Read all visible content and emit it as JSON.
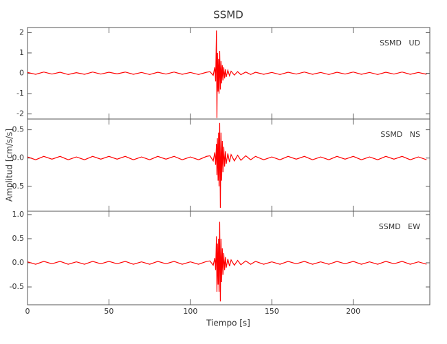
{
  "title": "SSMD",
  "xlabel": "Tiempo [s]",
  "ylabel": "Amplitud [cm/s/s]",
  "chart_data": [
    {
      "type": "line",
      "label": "SSMD   UD",
      "x": [
        0,
        5,
        10,
        15,
        20,
        25,
        30,
        35,
        40,
        45,
        50,
        55,
        60,
        65,
        70,
        75,
        80,
        85,
        90,
        95,
        100,
        105,
        110,
        112,
        114,
        115,
        115.5,
        116,
        116.3,
        116.6,
        117,
        117.3,
        117.6,
        118,
        118.4,
        118.8,
        119.2,
        119.6,
        120,
        120.5,
        121,
        121.5,
        122,
        123,
        124,
        125,
        127,
        129,
        131,
        134,
        137,
        140,
        145,
        150,
        155,
        160,
        165,
        170,
        175,
        180,
        185,
        190,
        195,
        200,
        205,
        210,
        215,
        220,
        225,
        230,
        235,
        240,
        245
      ],
      "series": [
        {
          "color": "#ff0000",
          "values": [
            0.04,
            -0.05,
            0.06,
            -0.04,
            0.05,
            -0.06,
            0.03,
            -0.05,
            0.06,
            -0.04,
            0.05,
            -0.03,
            0.06,
            -0.05,
            0.04,
            -0.06,
            0.05,
            -0.04,
            0.06,
            -0.05,
            0.04,
            -0.06,
            0.05,
            0.08,
            -0.1,
            0.3,
            -0.4,
            2.1,
            -2.2,
            1.0,
            -0.9,
            0.7,
            -1.0,
            1.1,
            -0.8,
            0.6,
            -0.5,
            0.4,
            -0.35,
            0.3,
            -0.25,
            0.2,
            -0.18,
            0.15,
            -0.12,
            0.1,
            -0.09,
            0.08,
            -0.07,
            0.06,
            -0.06,
            0.05,
            -0.05,
            0.04,
            -0.06,
            0.05,
            -0.04,
            0.06,
            -0.05,
            0.04,
            -0.06,
            0.05,
            -0.04,
            0.06,
            -0.05,
            0.04,
            -0.06,
            0.05,
            -0.04,
            0.06,
            -0.05,
            0.04,
            -0.05
          ]
        }
      ],
      "xlim": [
        0,
        247
      ],
      "xticks": [
        0,
        50,
        100,
        150,
        200
      ],
      "ylim": [
        -2.25,
        2.25
      ],
      "yticks": [
        -2,
        -1,
        0,
        1,
        2
      ]
    },
    {
      "type": "line",
      "label": "SSMD   NS",
      "x": [
        0,
        5,
        10,
        15,
        20,
        25,
        30,
        35,
        40,
        45,
        50,
        55,
        60,
        65,
        70,
        75,
        80,
        85,
        90,
        95,
        100,
        105,
        110,
        112,
        114,
        115,
        115.5,
        116,
        116.3,
        116.6,
        117,
        117.3,
        117.6,
        118,
        118.4,
        118.8,
        119.2,
        119.6,
        120,
        120.5,
        121,
        121.5,
        122,
        123,
        124,
        125,
        127,
        129,
        131,
        134,
        137,
        140,
        145,
        150,
        155,
        160,
        165,
        170,
        175,
        180,
        185,
        190,
        195,
        200,
        205,
        210,
        215,
        220,
        225,
        230,
        235,
        240,
        245
      ],
      "series": [
        {
          "color": "#ff0000",
          "values": [
            0.02,
            -0.03,
            0.03,
            -0.02,
            0.03,
            -0.03,
            0.02,
            -0.03,
            0.03,
            -0.02,
            0.03,
            -0.02,
            0.03,
            -0.03,
            0.02,
            -0.03,
            0.03,
            -0.02,
            0.03,
            -0.03,
            0.02,
            -0.03,
            0.03,
            0.04,
            -0.05,
            0.1,
            -0.12,
            0.25,
            -0.3,
            0.35,
            -0.4,
            0.45,
            -0.5,
            0.62,
            -0.88,
            0.45,
            -0.4,
            0.3,
            -0.25,
            0.2,
            -0.15,
            0.12,
            -0.1,
            0.08,
            -0.07,
            0.06,
            -0.05,
            0.05,
            -0.04,
            0.04,
            -0.03,
            0.03,
            -0.03,
            0.02,
            -0.03,
            0.03,
            -0.02,
            0.03,
            -0.03,
            0.02,
            -0.03,
            0.03,
            -0.02,
            0.03,
            -0.03,
            0.02,
            -0.03,
            0.03,
            -0.02,
            0.03,
            -0.03,
            0.02,
            -0.03
          ]
        }
      ],
      "xlim": [
        0,
        247
      ],
      "xticks": [
        0,
        50,
        100,
        150,
        200
      ],
      "ylim": [
        -0.94,
        0.69
      ],
      "yticks": [
        -0.5,
        {
          "value": 0,
          "label": "0.0"
        },
        0.5
      ]
    },
    {
      "type": "line",
      "label": "SSMD   EW",
      "x": [
        0,
        5,
        10,
        15,
        20,
        25,
        30,
        35,
        40,
        45,
        50,
        55,
        60,
        65,
        70,
        75,
        80,
        85,
        90,
        95,
        100,
        105,
        110,
        112,
        114,
        115,
        115.5,
        116,
        116.3,
        116.6,
        117,
        117.3,
        117.6,
        118,
        118.4,
        118.8,
        119.2,
        119.6,
        120,
        120.5,
        121,
        121.5,
        122,
        123,
        124,
        125,
        127,
        129,
        131,
        134,
        137,
        140,
        145,
        150,
        155,
        160,
        165,
        170,
        175,
        180,
        185,
        190,
        195,
        200,
        205,
        210,
        215,
        220,
        225,
        230,
        235,
        240,
        245
      ],
      "series": [
        {
          "color": "#ff0000",
          "values": [
            0.02,
            -0.03,
            0.03,
            -0.02,
            0.03,
            -0.03,
            0.02,
            -0.03,
            0.03,
            -0.02,
            0.03,
            -0.02,
            0.03,
            -0.03,
            0.02,
            -0.03,
            0.03,
            -0.02,
            0.03,
            -0.03,
            0.02,
            -0.03,
            0.03,
            0.04,
            -0.05,
            0.1,
            -0.15,
            0.55,
            -0.6,
            0.4,
            -0.45,
            0.5,
            -0.6,
            0.85,
            -0.8,
            0.5,
            -0.4,
            0.3,
            -0.25,
            0.2,
            -0.15,
            0.12,
            -0.1,
            0.08,
            -0.07,
            0.06,
            -0.05,
            0.05,
            -0.04,
            0.04,
            -0.03,
            0.03,
            -0.03,
            0.02,
            -0.03,
            0.03,
            -0.02,
            0.03,
            -0.03,
            0.02,
            -0.03,
            0.03,
            -0.02,
            0.03,
            -0.03,
            0.02,
            -0.03,
            0.03,
            -0.02,
            0.03,
            -0.03,
            0.02,
            -0.03
          ]
        }
      ],
      "xlim": [
        0,
        247
      ],
      "xticks": [
        0,
        50,
        100,
        150,
        200
      ],
      "ylim": [
        -0.87,
        1.07
      ],
      "yticks": [
        -0.5,
        {
          "value": 0,
          "label": "0.0"
        },
        0.5,
        {
          "value": 1,
          "label": "1.0"
        }
      ]
    }
  ]
}
